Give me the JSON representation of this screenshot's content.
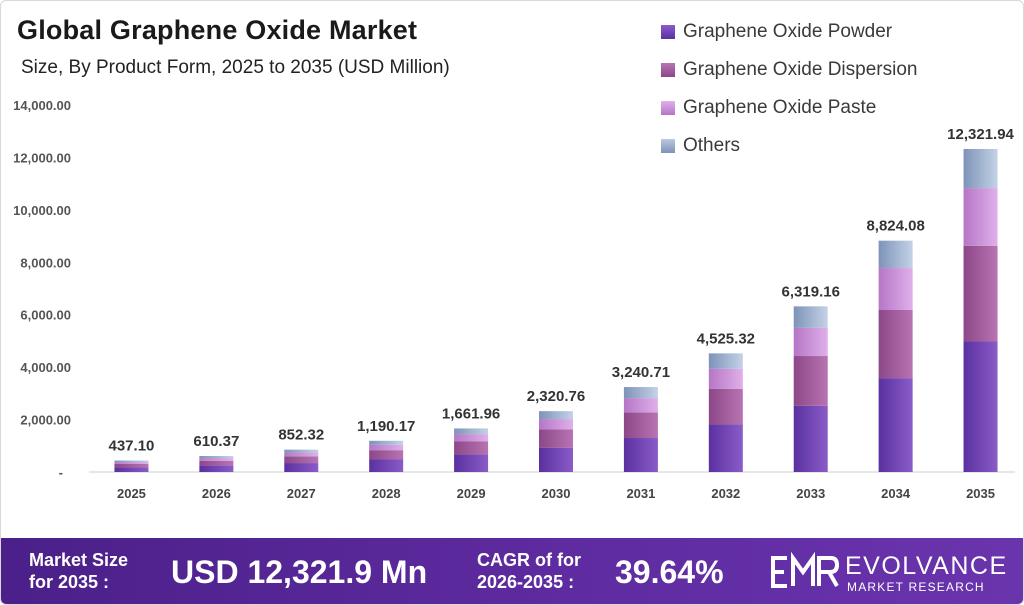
{
  "header": {
    "title": "Global Graphene Oxide Market",
    "subtitle": "Size, By Product Form, 2025 to 2035 (USD Million)"
  },
  "chart_data": {
    "type": "bar",
    "stacked": true,
    "categories": [
      "2025",
      "2026",
      "2027",
      "2028",
      "2029",
      "2030",
      "2031",
      "2032",
      "2033",
      "2034",
      "2035"
    ],
    "totals": [
      437.1,
      610.37,
      852.32,
      1190.17,
      1661.96,
      2320.76,
      3240.71,
      4525.32,
      6319.16,
      8824.08,
      12321.94
    ],
    "total_labels": [
      "437.10",
      "610.37",
      "852.32",
      "1,190.17",
      "1,661.96",
      "2,320.76",
      "3,240.71",
      "4,525.32",
      "6,319.16",
      "8,824.08",
      "12,321.94"
    ],
    "series": [
      {
        "name": "Graphene Oxide Powder",
        "color": "#6a3fb0",
        "values": [
          175,
          244,
          341,
          476,
          665,
          928,
          1296,
          1810,
          2528,
          3580,
          4980
        ]
      },
      {
        "name": "Graphene Oxide Dispersion",
        "color": "#a25a9e",
        "values": [
          131,
          183,
          256,
          357,
          499,
          696,
          972,
          1358,
          1896,
          2600,
          3650
        ]
      },
      {
        "name": "Graphene Oxide Paste",
        "color": "#c889d6",
        "values": [
          74,
          104,
          145,
          202,
          282,
          395,
          551,
          769,
          1074,
          1600,
          2200
        ]
      },
      {
        "name": "Others",
        "color": "#8ea6c8",
        "values": [
          57.1,
          79.37,
          110.32,
          155.17,
          215.96,
          301.76,
          421.71,
          588.32,
          821.16,
          1044.08,
          1491.94
        ]
      }
    ],
    "y_ticks": [
      "-",
      "2,000.00",
      "4,000.00",
      "6,000.00",
      "8,000.00",
      "10,000.00",
      "12,000.00",
      "14,000.00"
    ],
    "ylim": [
      0,
      14000
    ],
    "grid": false,
    "legend_position": "top-right"
  },
  "footer": {
    "market_size_label_1": "Market Size",
    "market_size_label_2": "for 2035 :",
    "market_size_value": "USD 12,321.9 Mn",
    "cagr_label_1": "CAGR of for",
    "cagr_label_2": "2026-2035 :",
    "cagr_value": "39.64%",
    "logo_name": "EVOLVANCE",
    "logo_sub": "MARKET RESEARCH"
  }
}
